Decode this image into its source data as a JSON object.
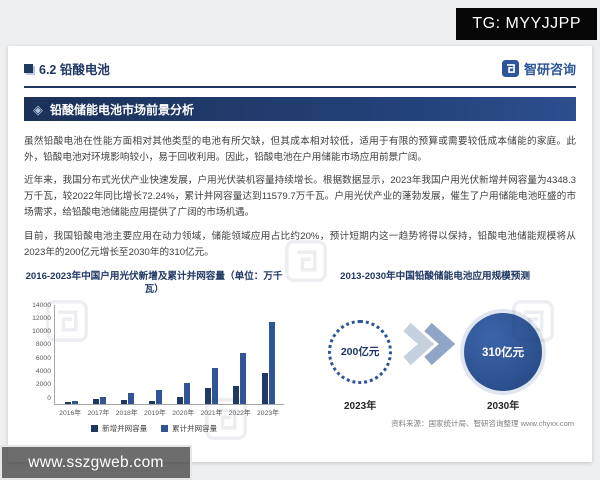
{
  "overlay": {
    "tg_label": "TG: MYYJJPP",
    "watermark_text": "www.sszgweb.com"
  },
  "header": {
    "section_title": "6.2 铅酸电池",
    "logo_text": "智研咨询",
    "banner_title": "铅酸储能电池市场前景分析"
  },
  "body": {
    "paragraphs": [
      "虽然铅酸电池在性能方面相对其他类型的电池有所欠缺，但其成本相对较低，适用于有限的预算或需要较低成本储能的家庭。此外，铅酸电池对环境影响较小，易于回收利用。因此，铅酸电池在户用储能市场应用前景广阔。",
      "近年来，我国分布式光伏产业快速发展，户用光伏装机容量持续增长。根据数据显示，2023年我国户用光伏新增并网容量为4348.3万千瓦，较2022年同比增长72.24%，累计并网容量达到11579.7万千瓦。户用光伏产业的蓬勃发展，催生了户用储能电池旺盛的市场需求，给铅酸电池储能应用提供了广阔的市场机遇。",
      "目前，我国铅酸电池主要应用在动力领域，储能领域应用占比约20%，预计短期内这一趋势将得以保持，铅酸电池储能规模将从2023年的200亿元增长至2030年的310亿元。"
    ],
    "source": "资料来源：国家统计局、智研咨询整理  www.chyxx.com"
  },
  "chart_data": [
    {
      "type": "bar",
      "title": "2016-2023年中国户用光伏新增及累计并网容量（单位：万千瓦）",
      "categories": [
        "2016年",
        "2017年",
        "2018年",
        "2019年",
        "2020年",
        "2021年",
        "2022年",
        "2023年"
      ],
      "series": [
        {
          "name": "新增并网容量",
          "color": "#1f3864",
          "values": [
            200,
            700,
            530,
            420,
            1010,
            2150,
            2525,
            4348.3
          ]
        },
        {
          "name": "累计并网容量",
          "color": "#2f5597",
          "values": [
            320,
            1000,
            1530,
            1950,
            2960,
            5110,
            7230,
            11579.7
          ]
        }
      ],
      "ylim": [
        0,
        14000
      ],
      "yticks": [
        0,
        2000,
        4000,
        6000,
        8000,
        10000,
        12000,
        14000
      ],
      "legend_position": "bottom",
      "grid": false
    },
    {
      "type": "bar",
      "render_style": "circle-comparison",
      "title": "2013-2030年中国铅酸储能电池应用规模预测",
      "categories": [
        "2023年",
        "2030年"
      ],
      "values": [
        200,
        310
      ],
      "unit": "亿元",
      "value_labels": [
        "200亿元",
        "310亿元"
      ]
    }
  ],
  "colors": {
    "navy": "#1f3864",
    "blue": "#2f5597",
    "banner": "#203864",
    "accent_light": "#aebfdd"
  }
}
